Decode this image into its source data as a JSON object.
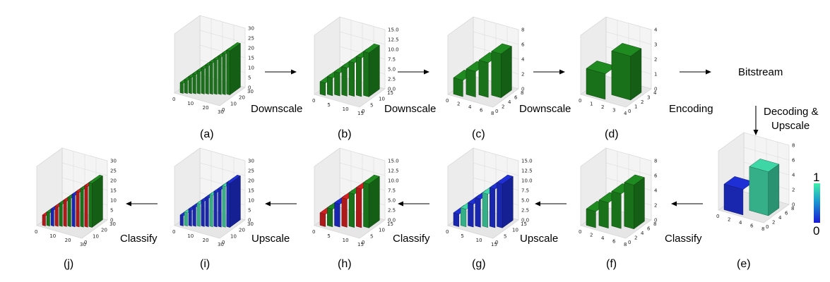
{
  "panels": [
    {
      "label": "(a)",
      "color": "green",
      "max": 32,
      "stairs": 12,
      "yticks": [
        "30",
        "25",
        "20",
        "15",
        "10",
        "5",
        "0"
      ],
      "xticks": [
        "0",
        "10",
        "20",
        "30"
      ],
      "dticks": [
        "30",
        "20",
        "10",
        "0"
      ]
    },
    {
      "label": "(b)",
      "color": "green",
      "max": 16,
      "stairs": 7,
      "yticks": [
        "15.0",
        "12.5",
        "10.0",
        "7.5",
        "5.0",
        "2.5",
        "0.0"
      ],
      "xticks": [
        "0",
        "5",
        "10",
        "15"
      ],
      "dticks": [
        "15",
        "10",
        "5",
        "0"
      ]
    },
    {
      "label": "(c)",
      "color": "green",
      "max": 8,
      "stairs": 4,
      "yticks": [
        "8",
        "6",
        "4",
        "2",
        "0"
      ],
      "xticks": [
        "0",
        "2",
        "4",
        "6",
        "8"
      ],
      "dticks": [
        "8",
        "6",
        "4",
        "2",
        "0"
      ]
    },
    {
      "label": "(d)",
      "color": "green",
      "max": 4,
      "stairs": 2,
      "yticks": [
        "4",
        "3",
        "2",
        "1",
        "0"
      ],
      "xticks": [
        "0",
        "1",
        "2",
        "3",
        "4"
      ],
      "dticks": [
        "4",
        "3",
        "2",
        "1",
        "0"
      ]
    },
    {
      "label": "(e)",
      "color": "prob",
      "max": 8,
      "stairs": 2,
      "yticks": [
        "8",
        "6",
        "4",
        "2",
        "0"
      ],
      "xticks": [
        "0",
        "2",
        "4",
        "6",
        "8"
      ],
      "dticks": [
        "8",
        "6",
        "4",
        "2",
        "0"
      ]
    },
    {
      "label": "(f)",
      "color": "green",
      "max": 8,
      "stairs": 4,
      "yticks": [
        "8",
        "6",
        "4",
        "2",
        "0"
      ],
      "xticks": [
        "0",
        "2",
        "4",
        "6",
        "8"
      ],
      "dticks": [
        "8",
        "6",
        "4",
        "2",
        "0"
      ]
    },
    {
      "label": "(g)",
      "color": "prob",
      "max": 16,
      "stairs": 7,
      "yticks": [
        "15.0",
        "12.5",
        "10.0",
        "7.5",
        "5.0",
        "2.5",
        "0.0"
      ],
      "xticks": [
        "0",
        "5",
        "10",
        "15"
      ],
      "dticks": [
        "15",
        "10",
        "5",
        "0"
      ]
    },
    {
      "label": "(h)",
      "color": "mixed",
      "max": 16,
      "stairs": 7,
      "yticks": [
        "15.0",
        "12.5",
        "10.0",
        "7.5",
        "5.0",
        "2.5",
        "0.0"
      ],
      "xticks": [
        "0",
        "5",
        "10",
        "15"
      ],
      "dticks": [
        "15",
        "10",
        "5",
        "0"
      ]
    },
    {
      "label": "(i)",
      "color": "prob",
      "max": 32,
      "stairs": 12,
      "yticks": [
        "30",
        "25",
        "20",
        "15",
        "10",
        "5",
        "0"
      ],
      "xticks": [
        "0",
        "10",
        "20",
        "30"
      ],
      "dticks": [
        "30",
        "20",
        "10",
        "0"
      ]
    },
    {
      "label": "(j)",
      "color": "mixed",
      "max": 32,
      "stairs": 12,
      "yticks": [
        "30",
        "25",
        "20",
        "15",
        "10",
        "5",
        "0"
      ],
      "xticks": [
        "0",
        "10",
        "20",
        "30"
      ],
      "dticks": [
        "30",
        "20",
        "10",
        "0"
      ]
    }
  ],
  "steps": {
    "downscale_1": "Downscale",
    "downscale_2": "Downscale",
    "downscale_3": "Downscale",
    "encoding": "Encoding",
    "bitstream": "Bitstream",
    "decoding_line1": "Decoding &",
    "decoding_line2": "Upscale",
    "classify_1": "Classify",
    "upscale_1": "Upscale",
    "classify_2": "Classify",
    "upscale_2": "Upscale",
    "classify_3": "Classify"
  },
  "colorbar": {
    "max_label": "1",
    "min_label": "0"
  },
  "colors": {
    "green": "#1f8a1f",
    "blue": "#1f2fd6",
    "teal": "#3fd6a6",
    "red": "#d42020"
  }
}
